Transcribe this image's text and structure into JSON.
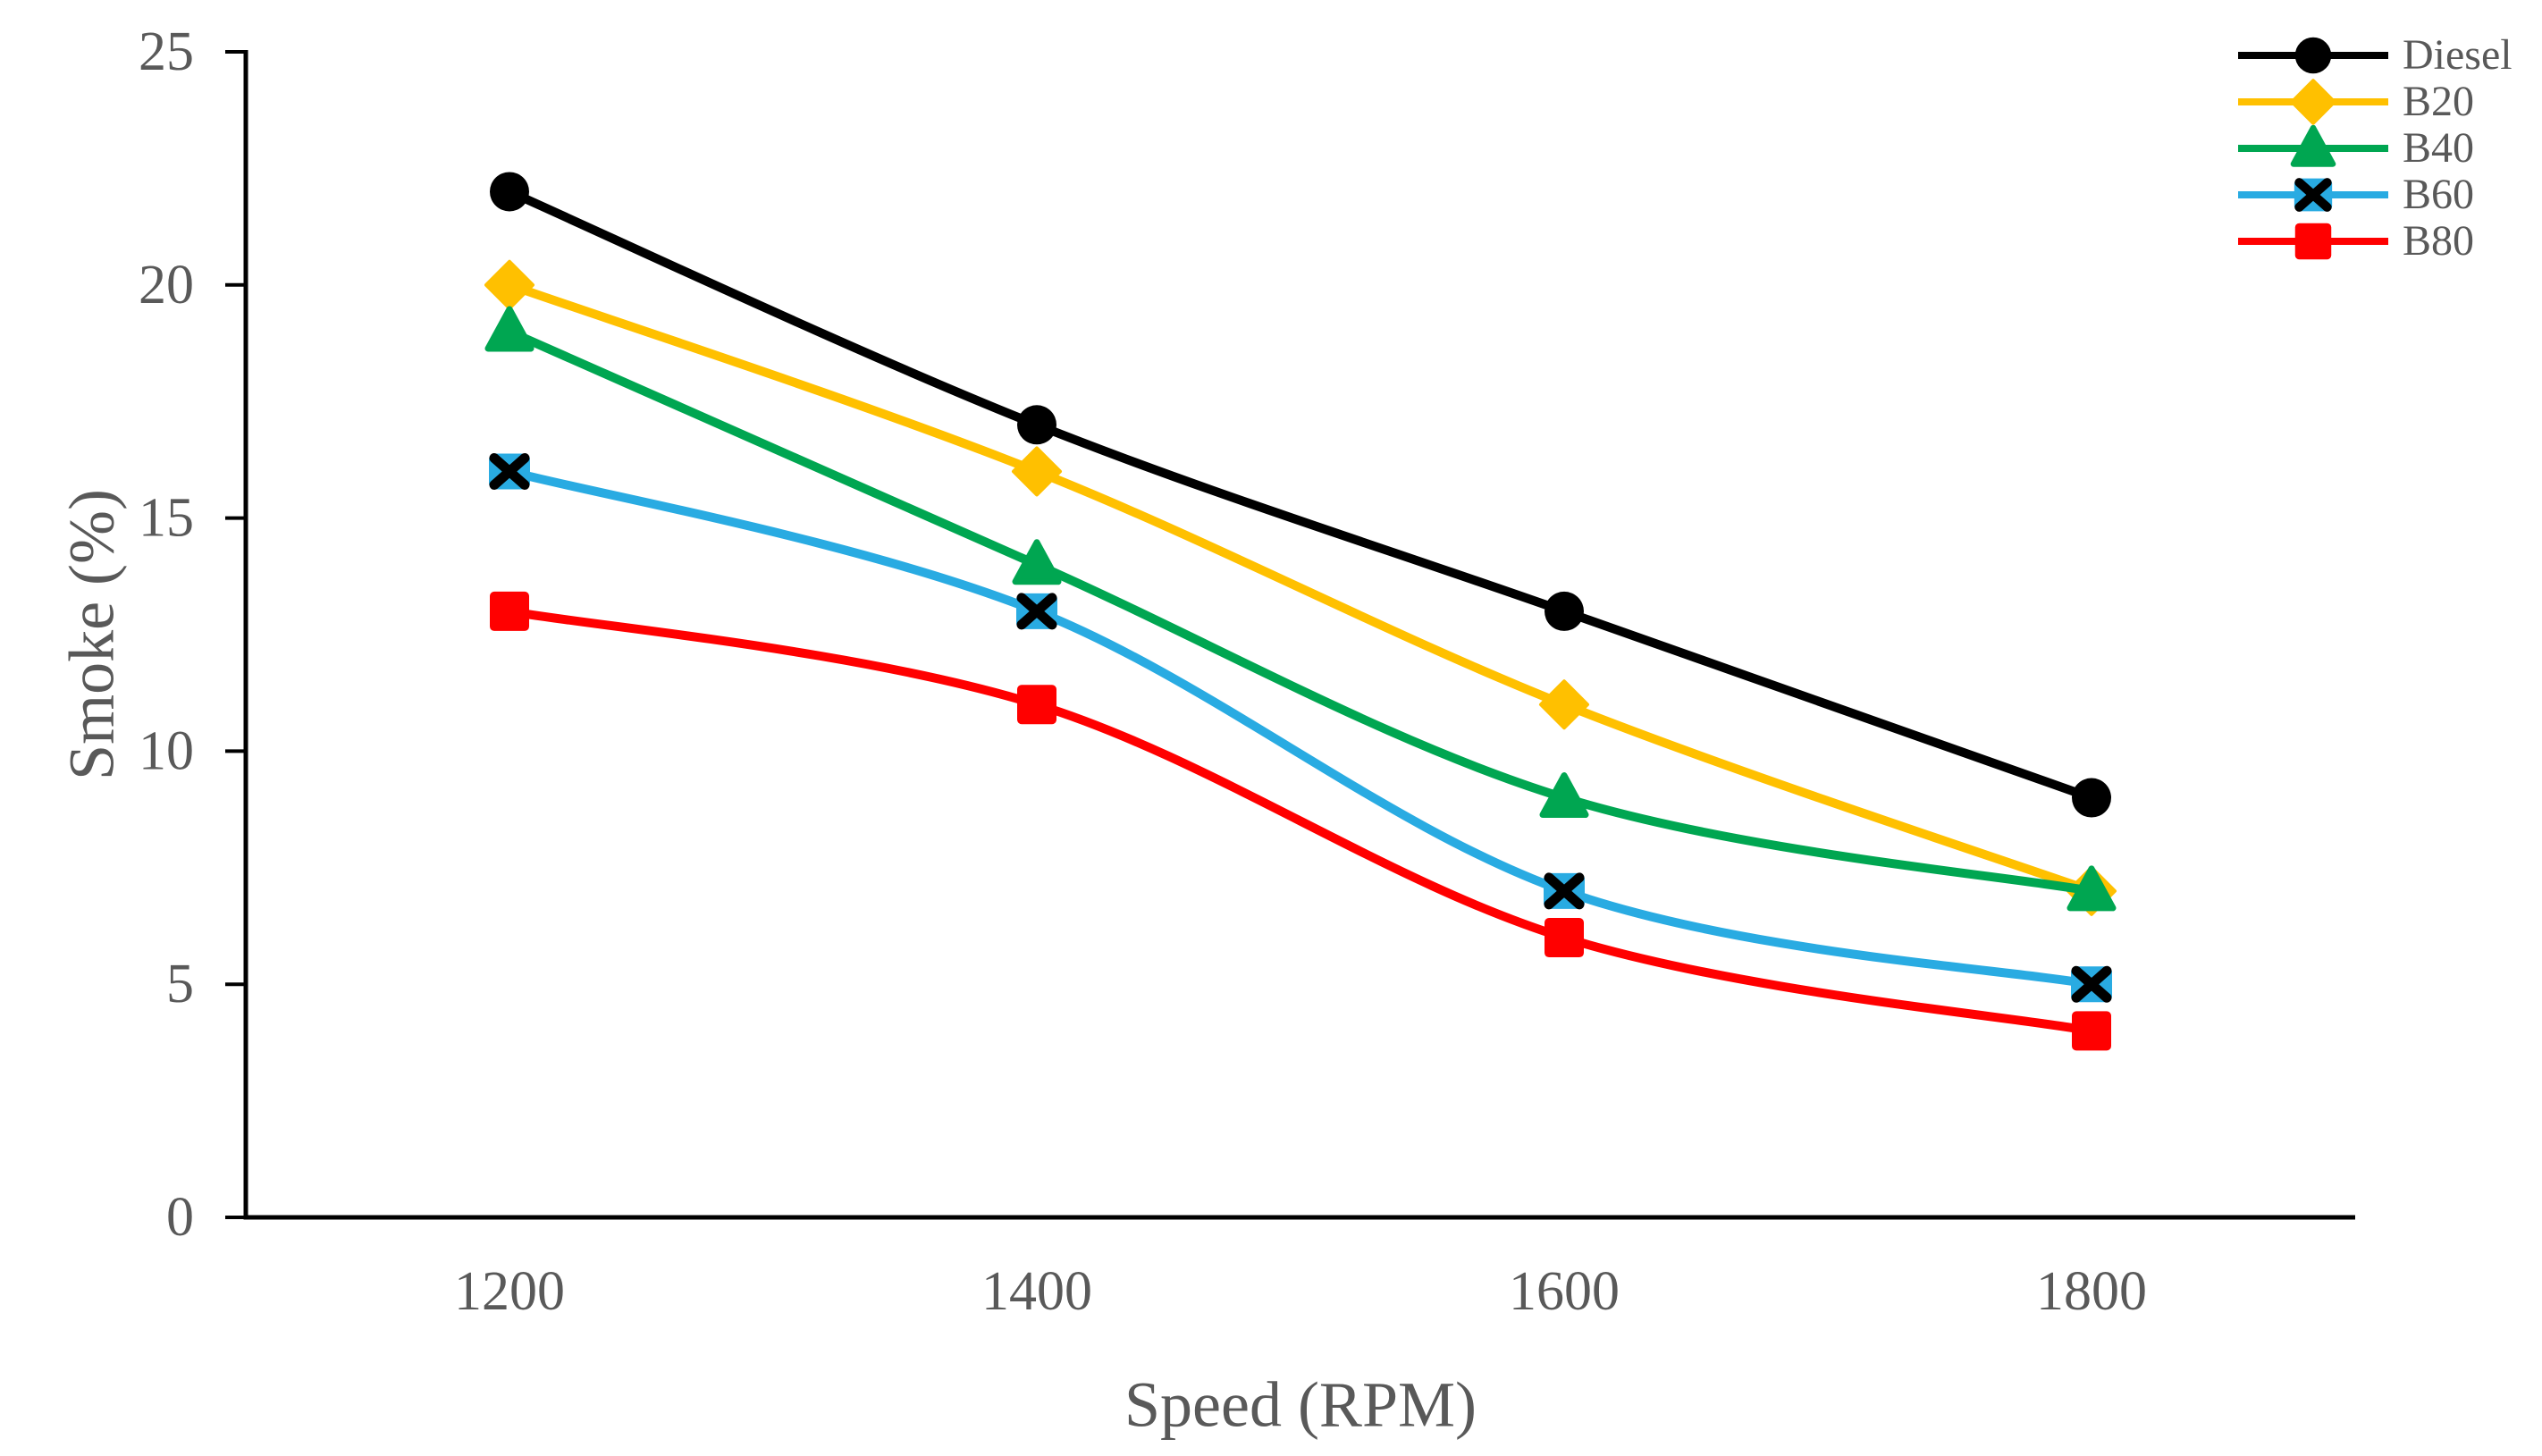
{
  "chart_data": {
    "type": "line",
    "title": "",
    "xlabel": "Speed (RPM)",
    "ylabel": "Smoke (%)",
    "categories": [
      "1200",
      "1400",
      "1600",
      "1800"
    ],
    "y_ticks": [
      "0",
      "5",
      "10",
      "15",
      "20",
      "25"
    ],
    "ylim": [
      0,
      25
    ],
    "grid": false,
    "smoothed_lines": true,
    "legend_position": "top-right",
    "axis_color": "#000000",
    "text_color": "#595959",
    "background_color": "#ffffff",
    "series": [
      {
        "name": "Diesel",
        "color": "#000000",
        "marker": "circle",
        "values": [
          22,
          17,
          13,
          9
        ]
      },
      {
        "name": "B20",
        "color": "#FFC000",
        "marker": "diamond",
        "values": [
          20,
          16,
          11,
          7
        ]
      },
      {
        "name": "B40",
        "color": "#00A651",
        "marker": "triangle",
        "values": [
          19,
          14,
          9,
          7
        ]
      },
      {
        "name": "B60",
        "color": "#29ABE2",
        "marker": "x-square",
        "marker_x_color": "#000000",
        "values": [
          16,
          13,
          7,
          5
        ]
      },
      {
        "name": "B80",
        "color": "#FF0000",
        "marker": "square",
        "values": [
          13,
          11,
          6,
          4
        ]
      }
    ]
  }
}
